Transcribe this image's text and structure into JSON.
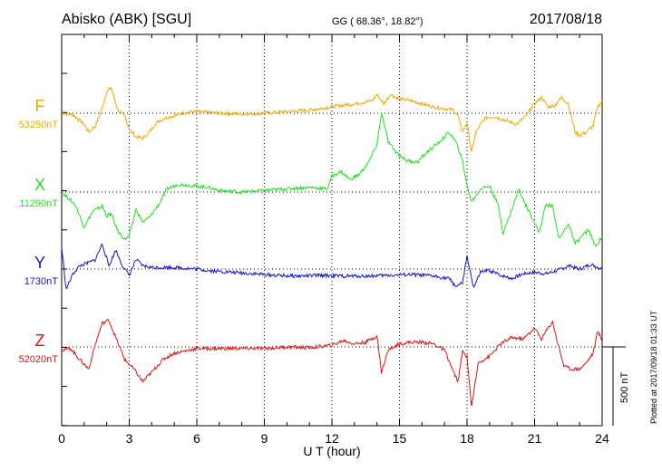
{
  "header": {
    "station": "Abisko (ABK)  [SGU]",
    "coords": "GG ( 68.36°,  18.82°)",
    "date": "2017/08/18"
  },
  "footnote": "Plotted at 2017/09/18 01:33 UT",
  "scale_label": "500 nT",
  "chart_data": {
    "type": "line",
    "xlabel": "U T (hour)",
    "x_ticks": [
      "0",
      "3",
      "6",
      "9",
      "12",
      "15",
      "18",
      "21",
      "24"
    ],
    "xlim": [
      0,
      24
    ],
    "grid": true,
    "scale_bar_nT": 500,
    "series": [
      {
        "name": "F",
        "baseline_label": "53250nT",
        "baseline_nT": 53250,
        "color": "#f0a800",
        "points": [
          [
            0,
            0
          ],
          [
            0.5,
            -10
          ],
          [
            1.0,
            -70
          ],
          [
            1.2,
            -120
          ],
          [
            1.5,
            -80
          ],
          [
            1.8,
            30
          ],
          [
            2.0,
            140
          ],
          [
            2.2,
            160
          ],
          [
            2.5,
            20
          ],
          [
            2.8,
            -20
          ],
          [
            3.0,
            -100
          ],
          [
            3.3,
            -150
          ],
          [
            3.6,
            -160
          ],
          [
            3.9,
            -120
          ],
          [
            4.2,
            -60
          ],
          [
            4.6,
            -30
          ],
          [
            5.0,
            -15
          ],
          [
            5.5,
            5
          ],
          [
            6.0,
            10
          ],
          [
            7.0,
            0
          ],
          [
            8.0,
            -5
          ],
          [
            9.0,
            0
          ],
          [
            10.0,
            10
          ],
          [
            11.0,
            20
          ],
          [
            12.0,
            40
          ],
          [
            13.0,
            60
          ],
          [
            13.8,
            80
          ],
          [
            14.0,
            120
          ],
          [
            14.3,
            60
          ],
          [
            14.6,
            120
          ],
          [
            15.0,
            90
          ],
          [
            15.5,
            80
          ],
          [
            16.0,
            60
          ],
          [
            16.5,
            40
          ],
          [
            17.0,
            30
          ],
          [
            17.4,
            20
          ],
          [
            17.6,
            -20
          ],
          [
            17.8,
            -120
          ],
          [
            18.0,
            -60
          ],
          [
            18.2,
            -250
          ],
          [
            18.4,
            -120
          ],
          [
            18.8,
            -30
          ],
          [
            19.2,
            -20
          ],
          [
            19.8,
            -50
          ],
          [
            20.2,
            -70
          ],
          [
            20.6,
            -20
          ],
          [
            21.0,
            60
          ],
          [
            21.3,
            100
          ],
          [
            21.6,
            40
          ],
          [
            21.9,
            50
          ],
          [
            22.2,
            100
          ],
          [
            22.5,
            60
          ],
          [
            22.8,
            -120
          ],
          [
            23.0,
            -140
          ],
          [
            23.3,
            -120
          ],
          [
            23.6,
            -80
          ],
          [
            23.8,
            40
          ],
          [
            24.0,
            80
          ]
        ]
      },
      {
        "name": "X",
        "baseline_label": "11290nT",
        "baseline_nT": 11290,
        "color": "#22e022",
        "points": [
          [
            0,
            0
          ],
          [
            0.3,
            -40
          ],
          [
            0.6,
            -80
          ],
          [
            1.0,
            -220
          ],
          [
            1.4,
            -120
          ],
          [
            1.8,
            -90
          ],
          [
            2.0,
            -150
          ],
          [
            2.2,
            -140
          ],
          [
            2.5,
            -250
          ],
          [
            2.8,
            -300
          ],
          [
            3.0,
            -280
          ],
          [
            3.3,
            -110
          ],
          [
            3.6,
            -190
          ],
          [
            3.9,
            -160
          ],
          [
            4.3,
            -80
          ],
          [
            4.7,
            20
          ],
          [
            5.2,
            50
          ],
          [
            5.8,
            40
          ],
          [
            6.5,
            30
          ],
          [
            7.0,
            10
          ],
          [
            8.0,
            0
          ],
          [
            9.0,
            10
          ],
          [
            10.0,
            20
          ],
          [
            11.0,
            30
          ],
          [
            11.8,
            20
          ],
          [
            12.0,
            100
          ],
          [
            12.4,
            130
          ],
          [
            12.8,
            80
          ],
          [
            13.2,
            110
          ],
          [
            13.6,
            180
          ],
          [
            14.0,
            300
          ],
          [
            14.2,
            500
          ],
          [
            14.5,
            320
          ],
          [
            14.8,
            260
          ],
          [
            15.3,
            200
          ],
          [
            15.8,
            190
          ],
          [
            16.2,
            250
          ],
          [
            16.8,
            320
          ],
          [
            17.2,
            380
          ],
          [
            17.5,
            320
          ],
          [
            17.8,
            200
          ],
          [
            18.0,
            40
          ],
          [
            18.2,
            -60
          ],
          [
            18.6,
            20
          ],
          [
            19.0,
            40
          ],
          [
            19.4,
            -90
          ],
          [
            19.6,
            -260
          ],
          [
            19.9,
            -150
          ],
          [
            20.3,
            20
          ],
          [
            20.6,
            -80
          ],
          [
            20.9,
            -160
          ],
          [
            21.2,
            -260
          ],
          [
            21.5,
            -80
          ],
          [
            21.8,
            -90
          ],
          [
            22.1,
            -300
          ],
          [
            22.5,
            -200
          ],
          [
            22.8,
            -330
          ],
          [
            23.1,
            -280
          ],
          [
            23.4,
            -240
          ],
          [
            23.7,
            -350
          ],
          [
            24.0,
            -280
          ]
        ]
      },
      {
        "name": "Y",
        "baseline_label": "1730nT",
        "baseline_nT": 1730,
        "color": "#1414cc",
        "points": [
          [
            0,
            140
          ],
          [
            0.2,
            -130
          ],
          [
            0.5,
            -30
          ],
          [
            0.8,
            20
          ],
          [
            1.2,
            40
          ],
          [
            1.5,
            60
          ],
          [
            1.8,
            160
          ],
          [
            2.1,
            20
          ],
          [
            2.4,
            120
          ],
          [
            2.7,
            20
          ],
          [
            3.0,
            -40
          ],
          [
            3.3,
            60
          ],
          [
            3.6,
            20
          ],
          [
            4.0,
            10
          ],
          [
            5.0,
            10
          ],
          [
            6.0,
            0
          ],
          [
            6.5,
            -10
          ],
          [
            7.5,
            -20
          ],
          [
            8.5,
            -30
          ],
          [
            9.5,
            -40
          ],
          [
            10.5,
            -45
          ],
          [
            11.5,
            -40
          ],
          [
            12.5,
            -45
          ],
          [
            13.5,
            -45
          ],
          [
            14.5,
            -40
          ],
          [
            15.5,
            -35
          ],
          [
            16.5,
            -45
          ],
          [
            17.2,
            -60
          ],
          [
            17.5,
            -110
          ],
          [
            17.8,
            -90
          ],
          [
            18.0,
            80
          ],
          [
            18.3,
            -120
          ],
          [
            18.6,
            -20
          ],
          [
            19.0,
            -10
          ],
          [
            19.5,
            -40
          ],
          [
            20.0,
            -60
          ],
          [
            20.5,
            -30
          ],
          [
            21.0,
            -20
          ],
          [
            21.5,
            -30
          ],
          [
            22.0,
            -10
          ],
          [
            22.5,
            20
          ],
          [
            23.0,
            0
          ],
          [
            23.5,
            30
          ],
          [
            24.0,
            0
          ]
        ]
      },
      {
        "name": "Z",
        "baseline_label": "52020nT",
        "baseline_nT": 52020,
        "color": "#e01414",
        "points": [
          [
            0,
            -20
          ],
          [
            0.4,
            -10
          ],
          [
            0.8,
            -80
          ],
          [
            1.2,
            -140
          ],
          [
            1.5,
            20
          ],
          [
            1.8,
            150
          ],
          [
            2.1,
            170
          ],
          [
            2.4,
            60
          ],
          [
            2.8,
            -80
          ],
          [
            3.2,
            -140
          ],
          [
            3.6,
            -220
          ],
          [
            4.0,
            -160
          ],
          [
            4.5,
            -80
          ],
          [
            5.0,
            -40
          ],
          [
            6.0,
            -10
          ],
          [
            7.0,
            -10
          ],
          [
            8.0,
            -10
          ],
          [
            9.0,
            -10
          ],
          [
            10.0,
            0
          ],
          [
            11.0,
            -5
          ],
          [
            12.0,
            10
          ],
          [
            12.5,
            40
          ],
          [
            13.0,
            20
          ],
          [
            13.5,
            30
          ],
          [
            14.0,
            70
          ],
          [
            14.2,
            -160
          ],
          [
            14.5,
            -20
          ],
          [
            15.0,
            20
          ],
          [
            15.5,
            30
          ],
          [
            16.0,
            30
          ],
          [
            16.5,
            20
          ],
          [
            17.0,
            -20
          ],
          [
            17.4,
            -160
          ],
          [
            17.6,
            -220
          ],
          [
            17.8,
            -30
          ],
          [
            18.0,
            -60
          ],
          [
            18.2,
            -380
          ],
          [
            18.5,
            -100
          ],
          [
            19.0,
            -60
          ],
          [
            19.5,
            20
          ],
          [
            20.0,
            60
          ],
          [
            20.5,
            50
          ],
          [
            21.0,
            120
          ],
          [
            21.3,
            50
          ],
          [
            21.6,
            120
          ],
          [
            21.8,
            160
          ],
          [
            22.0,
            40
          ],
          [
            22.3,
            -120
          ],
          [
            22.6,
            -140
          ],
          [
            23.0,
            -140
          ],
          [
            23.3,
            -100
          ],
          [
            23.6,
            -40
          ],
          [
            23.8,
            100
          ],
          [
            24.0,
            40
          ]
        ]
      }
    ]
  }
}
